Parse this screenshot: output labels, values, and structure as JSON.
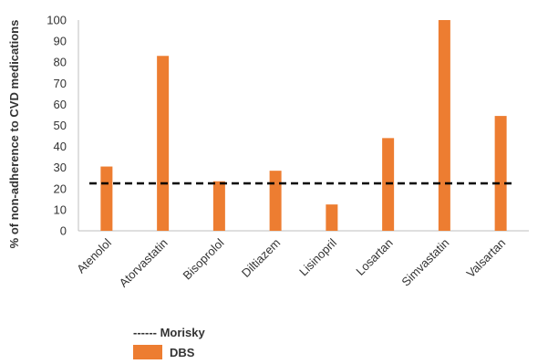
{
  "chart_data": {
    "type": "bar",
    "categories": [
      "Atenolol",
      "Atorvastatin",
      "Bisoprolol",
      "Diltiazem",
      "Lisinopril",
      "Losartan",
      "Simvastatin",
      "Valsartan"
    ],
    "series": [
      {
        "name": "DBS",
        "values": [
          30.5,
          83,
          23.5,
          28.5,
          12.5,
          44,
          100,
          54.5
        ],
        "color": "#ED7D31"
      }
    ],
    "reference_line": {
      "name": "Morisky",
      "value": 22.5,
      "style": "dashed",
      "color": "#000000"
    },
    "legend_morisky_text": "------ Morisky",
    "ylabel": "% of non-adherence  to CVD medications",
    "ylim": [
      0,
      100
    ],
    "yticks": [
      0,
      10,
      20,
      30,
      40,
      50,
      60,
      70,
      80,
      90,
      100
    ],
    "grid": false,
    "legend_position": "bottom-left"
  }
}
